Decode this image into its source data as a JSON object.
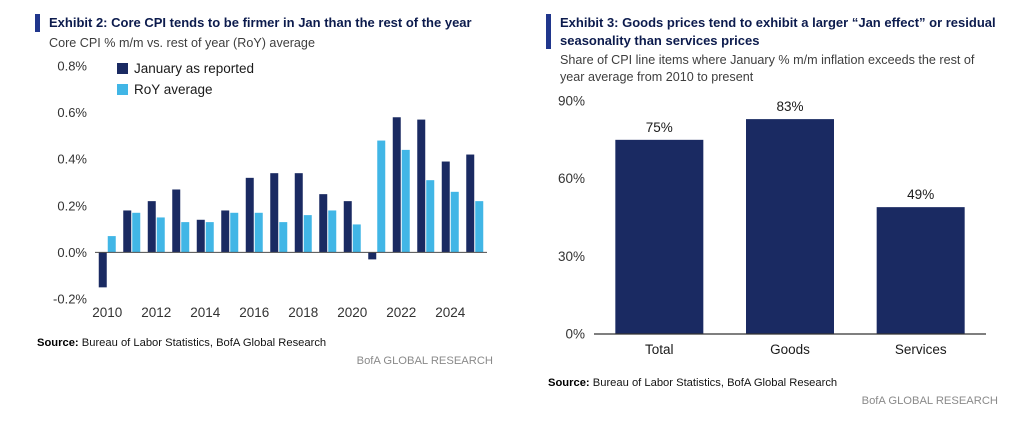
{
  "colors": {
    "navy": "#1a2a62",
    "light_blue": "#41b6e6",
    "accent_bar": "#20368c",
    "title_text": "#0c1b4d",
    "footer_gray": "#8a8a8a"
  },
  "panels": {
    "left": {
      "title": "Exhibit 2: Core CPI tends to be firmer in Jan than the rest of the year",
      "subtitle": "Core CPI % m/m vs. rest of year (RoY) average",
      "source_label": "Source:",
      "source": "Bureau of Labor Statistics, BofA Global Research",
      "footer": "BofA GLOBAL RESEARCH"
    },
    "right": {
      "title": "Exhibit 3: Goods prices tend to exhibit a larger “Jan effect” or residual seasonality than services prices",
      "subtitle": "Share of CPI line items where January % m/m inflation exceeds the rest of year average from 2010 to present",
      "source_label": "Source:",
      "source": "Bureau of Labor Statistics, BofA Global Research",
      "footer": "BofA GLOBAL RESEARCH"
    }
  },
  "chart_data": [
    {
      "id": "core-cpi-jan-vs-roy",
      "type": "bar",
      "title": "Exhibit 2: Core CPI tends to be firmer in Jan than the rest of the year",
      "subtitle": "Core CPI % m/m vs. rest of year (RoY) average",
      "categories": [
        "2010",
        "2011",
        "2012",
        "2013",
        "2014",
        "2015",
        "2016",
        "2017",
        "2018",
        "2019",
        "2020",
        "2021",
        "2022",
        "2023",
        "2024",
        "2025"
      ],
      "x_tick_labels": [
        "2010",
        "2012",
        "2014",
        "2016",
        "2018",
        "2020",
        "2022",
        "2024"
      ],
      "series": [
        {
          "name": "January as reported",
          "color_key": "navy",
          "values": [
            -0.15,
            0.18,
            0.22,
            0.27,
            0.14,
            0.18,
            0.32,
            0.34,
            0.34,
            0.25,
            0.22,
            -0.03,
            0.58,
            0.57,
            0.39,
            0.42
          ]
        },
        {
          "name": "RoY average",
          "color_key": "light_blue",
          "values": [
            0.07,
            0.17,
            0.15,
            0.13,
            0.13,
            0.17,
            0.17,
            0.13,
            0.16,
            0.18,
            0.12,
            0.48,
            0.44,
            0.31,
            0.26,
            0.22
          ]
        }
      ],
      "ylim": [
        -0.2,
        0.8
      ],
      "yticks": [
        {
          "v": 0.8,
          "label": "0.8%"
        },
        {
          "v": 0.6,
          "label": "0.6%"
        },
        {
          "v": 0.4,
          "label": "0.4%"
        },
        {
          "v": 0.2,
          "label": "0.2%"
        },
        {
          "v": 0.0,
          "label": "0.0%"
        },
        {
          "v": -0.2,
          "label": "-0.2%"
        }
      ],
      "grid": false,
      "legend_position": "top-left"
    },
    {
      "id": "jan-effect-share-by-category",
      "type": "bar",
      "title": "Exhibit 3: Goods prices tend to exhibit a larger “Jan effect” or residual seasonality than services prices",
      "subtitle": "Share of CPI line items where January % m/m inflation exceeds the rest of year average from 2010 to present",
      "categories": [
        "Total",
        "Goods",
        "Services"
      ],
      "values": [
        75,
        83,
        49
      ],
      "value_labels": [
        "75%",
        "83%",
        "49%"
      ],
      "ylim": [
        0,
        90
      ],
      "yticks": [
        {
          "v": 90,
          "label": "90%"
        },
        {
          "v": 60,
          "label": "60%"
        },
        {
          "v": 30,
          "label": "30%"
        },
        {
          "v": 0,
          "label": "0%"
        }
      ],
      "grid": false,
      "legend_position": "none"
    }
  ]
}
